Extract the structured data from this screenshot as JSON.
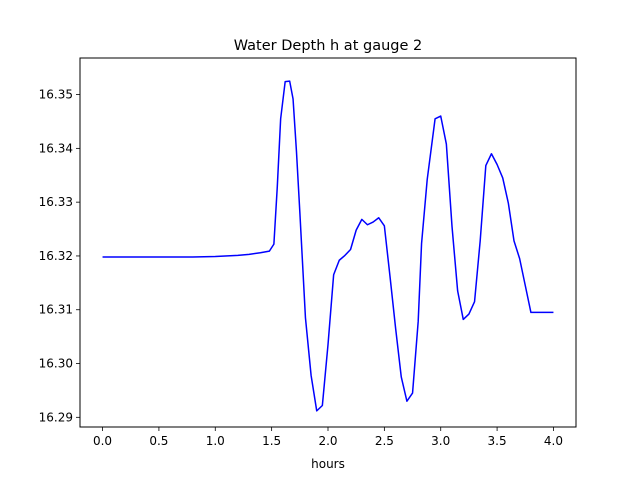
{
  "chart_data": {
    "type": "line",
    "title": "Water Depth h at gauge 2",
    "xlabel": "hours",
    "ylabel": "",
    "xlim": [
      -0.2,
      4.2
    ],
    "ylim": [
      16.2882,
      16.3568
    ],
    "xticks": [
      0.0,
      0.5,
      1.0,
      1.5,
      2.0,
      2.5,
      3.0,
      3.5,
      4.0
    ],
    "xtick_labels": [
      "0.0",
      "0.5",
      "1.0",
      "1.5",
      "2.0",
      "2.5",
      "3.0",
      "3.5",
      "4.0"
    ],
    "yticks": [
      16.29,
      16.3,
      16.31,
      16.32,
      16.33,
      16.34,
      16.35
    ],
    "ytick_labels": [
      "16.29",
      "16.30",
      "16.31",
      "16.32",
      "16.33",
      "16.34",
      "16.35"
    ],
    "grid": false,
    "series": [
      {
        "color": "#0000ff",
        "x": [
          0.0,
          0.2,
          0.4,
          0.6,
          0.8,
          1.0,
          1.2,
          1.3,
          1.4,
          1.48,
          1.52,
          1.55,
          1.58,
          1.62,
          1.66,
          1.69,
          1.72,
          1.75,
          1.8,
          1.85,
          1.9,
          1.95,
          2.0,
          2.05,
          2.1,
          2.15,
          2.2,
          2.25,
          2.3,
          2.35,
          2.4,
          2.45,
          2.5,
          2.55,
          2.6,
          2.65,
          2.7,
          2.75,
          2.8,
          2.83,
          2.88,
          2.95,
          3.0,
          3.05,
          3.1,
          3.15,
          3.2,
          3.25,
          3.3,
          3.35,
          3.4,
          3.45,
          3.5,
          3.55,
          3.6,
          3.65,
          3.7,
          3.75,
          3.8,
          3.85,
          3.9,
          3.95,
          4.0
        ],
        "y": [
          16.3198,
          16.3198,
          16.3198,
          16.3198,
          16.3198,
          16.3199,
          16.3201,
          16.3203,
          16.3206,
          16.3209,
          16.3222,
          16.3328,
          16.3455,
          16.3524,
          16.3525,
          16.3492,
          16.3395,
          16.3282,
          16.3085,
          16.2978,
          16.2912,
          16.2922,
          16.3035,
          16.3165,
          16.3192,
          16.3201,
          16.3212,
          16.3248,
          16.3268,
          16.3258,
          16.3263,
          16.3271,
          16.3256,
          16.3162,
          16.3065,
          16.2975,
          16.293,
          16.2945,
          16.3078,
          16.3223,
          16.3342,
          16.3455,
          16.346,
          16.3408,
          16.3255,
          16.3135,
          16.3082,
          16.3092,
          16.3115,
          16.3228,
          16.3368,
          16.339,
          16.337,
          16.3345,
          16.3298,
          16.3228,
          16.3195,
          16.3145,
          16.3095,
          16.3095,
          16.3095,
          16.3095,
          16.3095
        ]
      }
    ]
  }
}
